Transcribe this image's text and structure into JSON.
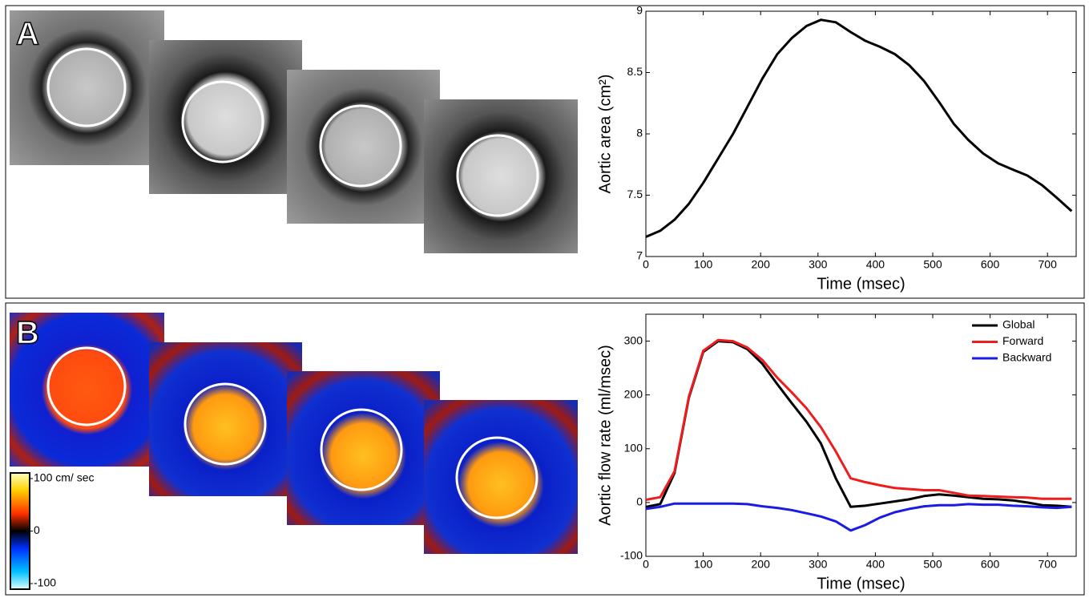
{
  "figure": {
    "panels": [
      {
        "label": "A"
      },
      {
        "label": "B",
        "colorbar": {
          "ticks": [
            {
              "value": 100,
              "label": "100 cm/ sec"
            },
            0,
            -100
          ]
        }
      }
    ]
  },
  "chart_data": [
    {
      "type": "line",
      "xlabel": "Time (msec)",
      "ylabel": "Aortic area (cm²)",
      "x": [
        0,
        25,
        50,
        75,
        100,
        126,
        152,
        177,
        203,
        229,
        254,
        280,
        305,
        331,
        357,
        382,
        408,
        434,
        459,
        485,
        511,
        537,
        562,
        588,
        614,
        639,
        665,
        691,
        716,
        742
      ],
      "values": [
        7.16,
        7.21,
        7.3,
        7.43,
        7.6,
        7.8,
        8.0,
        8.22,
        8.45,
        8.65,
        8.78,
        8.88,
        8.93,
        8.91,
        8.83,
        8.76,
        8.71,
        8.65,
        8.56,
        8.43,
        8.26,
        8.08,
        7.95,
        7.84,
        7.76,
        7.71,
        7.66,
        7.58,
        7.48,
        7.37
      ],
      "color": "#000000",
      "xlim": [
        0,
        750
      ],
      "xticks": [
        0,
        100,
        200,
        300,
        400,
        500,
        600,
        700
      ],
      "ylim": [
        7,
        9
      ],
      "yticks": [
        7,
        7.5,
        8,
        8.5,
        9
      ]
    },
    {
      "type": "line",
      "xlabel": "Time (msec)",
      "ylabel": "Aortic flow rate (ml/msec)",
      "x": [
        0,
        25,
        50,
        75,
        100,
        126,
        152,
        177,
        203,
        229,
        254,
        280,
        305,
        331,
        357,
        382,
        408,
        434,
        459,
        485,
        511,
        537,
        562,
        588,
        614,
        639,
        665,
        691,
        716,
        742
      ],
      "series": [
        {
          "name": "Global",
          "color": "#000000",
          "values": [
            -8,
            -3,
            55,
            195,
            280,
            300,
            298,
            285,
            258,
            220,
            185,
            150,
            110,
            45,
            -8,
            -6,
            -2,
            2,
            6,
            12,
            15,
            13,
            10,
            7,
            6,
            4,
            0,
            -5,
            -6,
            -8
          ]
        },
        {
          "name": "Forward",
          "color": "#ee1c1c",
          "values": [
            5,
            10,
            58,
            197,
            282,
            302,
            300,
            288,
            265,
            232,
            205,
            175,
            140,
            95,
            45,
            38,
            32,
            27,
            25,
            23,
            23,
            18,
            13,
            12,
            11,
            10,
            9,
            7,
            7,
            7
          ]
        },
        {
          "name": "Backward",
          "color": "#1b1be6",
          "values": [
            -12,
            -8,
            -2,
            -2,
            -2,
            -2,
            -2,
            -3,
            -7,
            -10,
            -14,
            -20,
            -26,
            -35,
            -52,
            -42,
            -28,
            -18,
            -12,
            -7,
            -5,
            -5,
            -3,
            -4,
            -4,
            -6,
            -7,
            -9,
            -10,
            -8
          ]
        }
      ],
      "legend": "upper right",
      "xlim": [
        0,
        750
      ],
      "xticks": [
        0,
        100,
        200,
        300,
        400,
        500,
        600,
        700
      ],
      "ylim": [
        -100,
        350
      ],
      "yticks": [
        -100,
        0,
        100,
        200,
        300
      ]
    }
  ]
}
